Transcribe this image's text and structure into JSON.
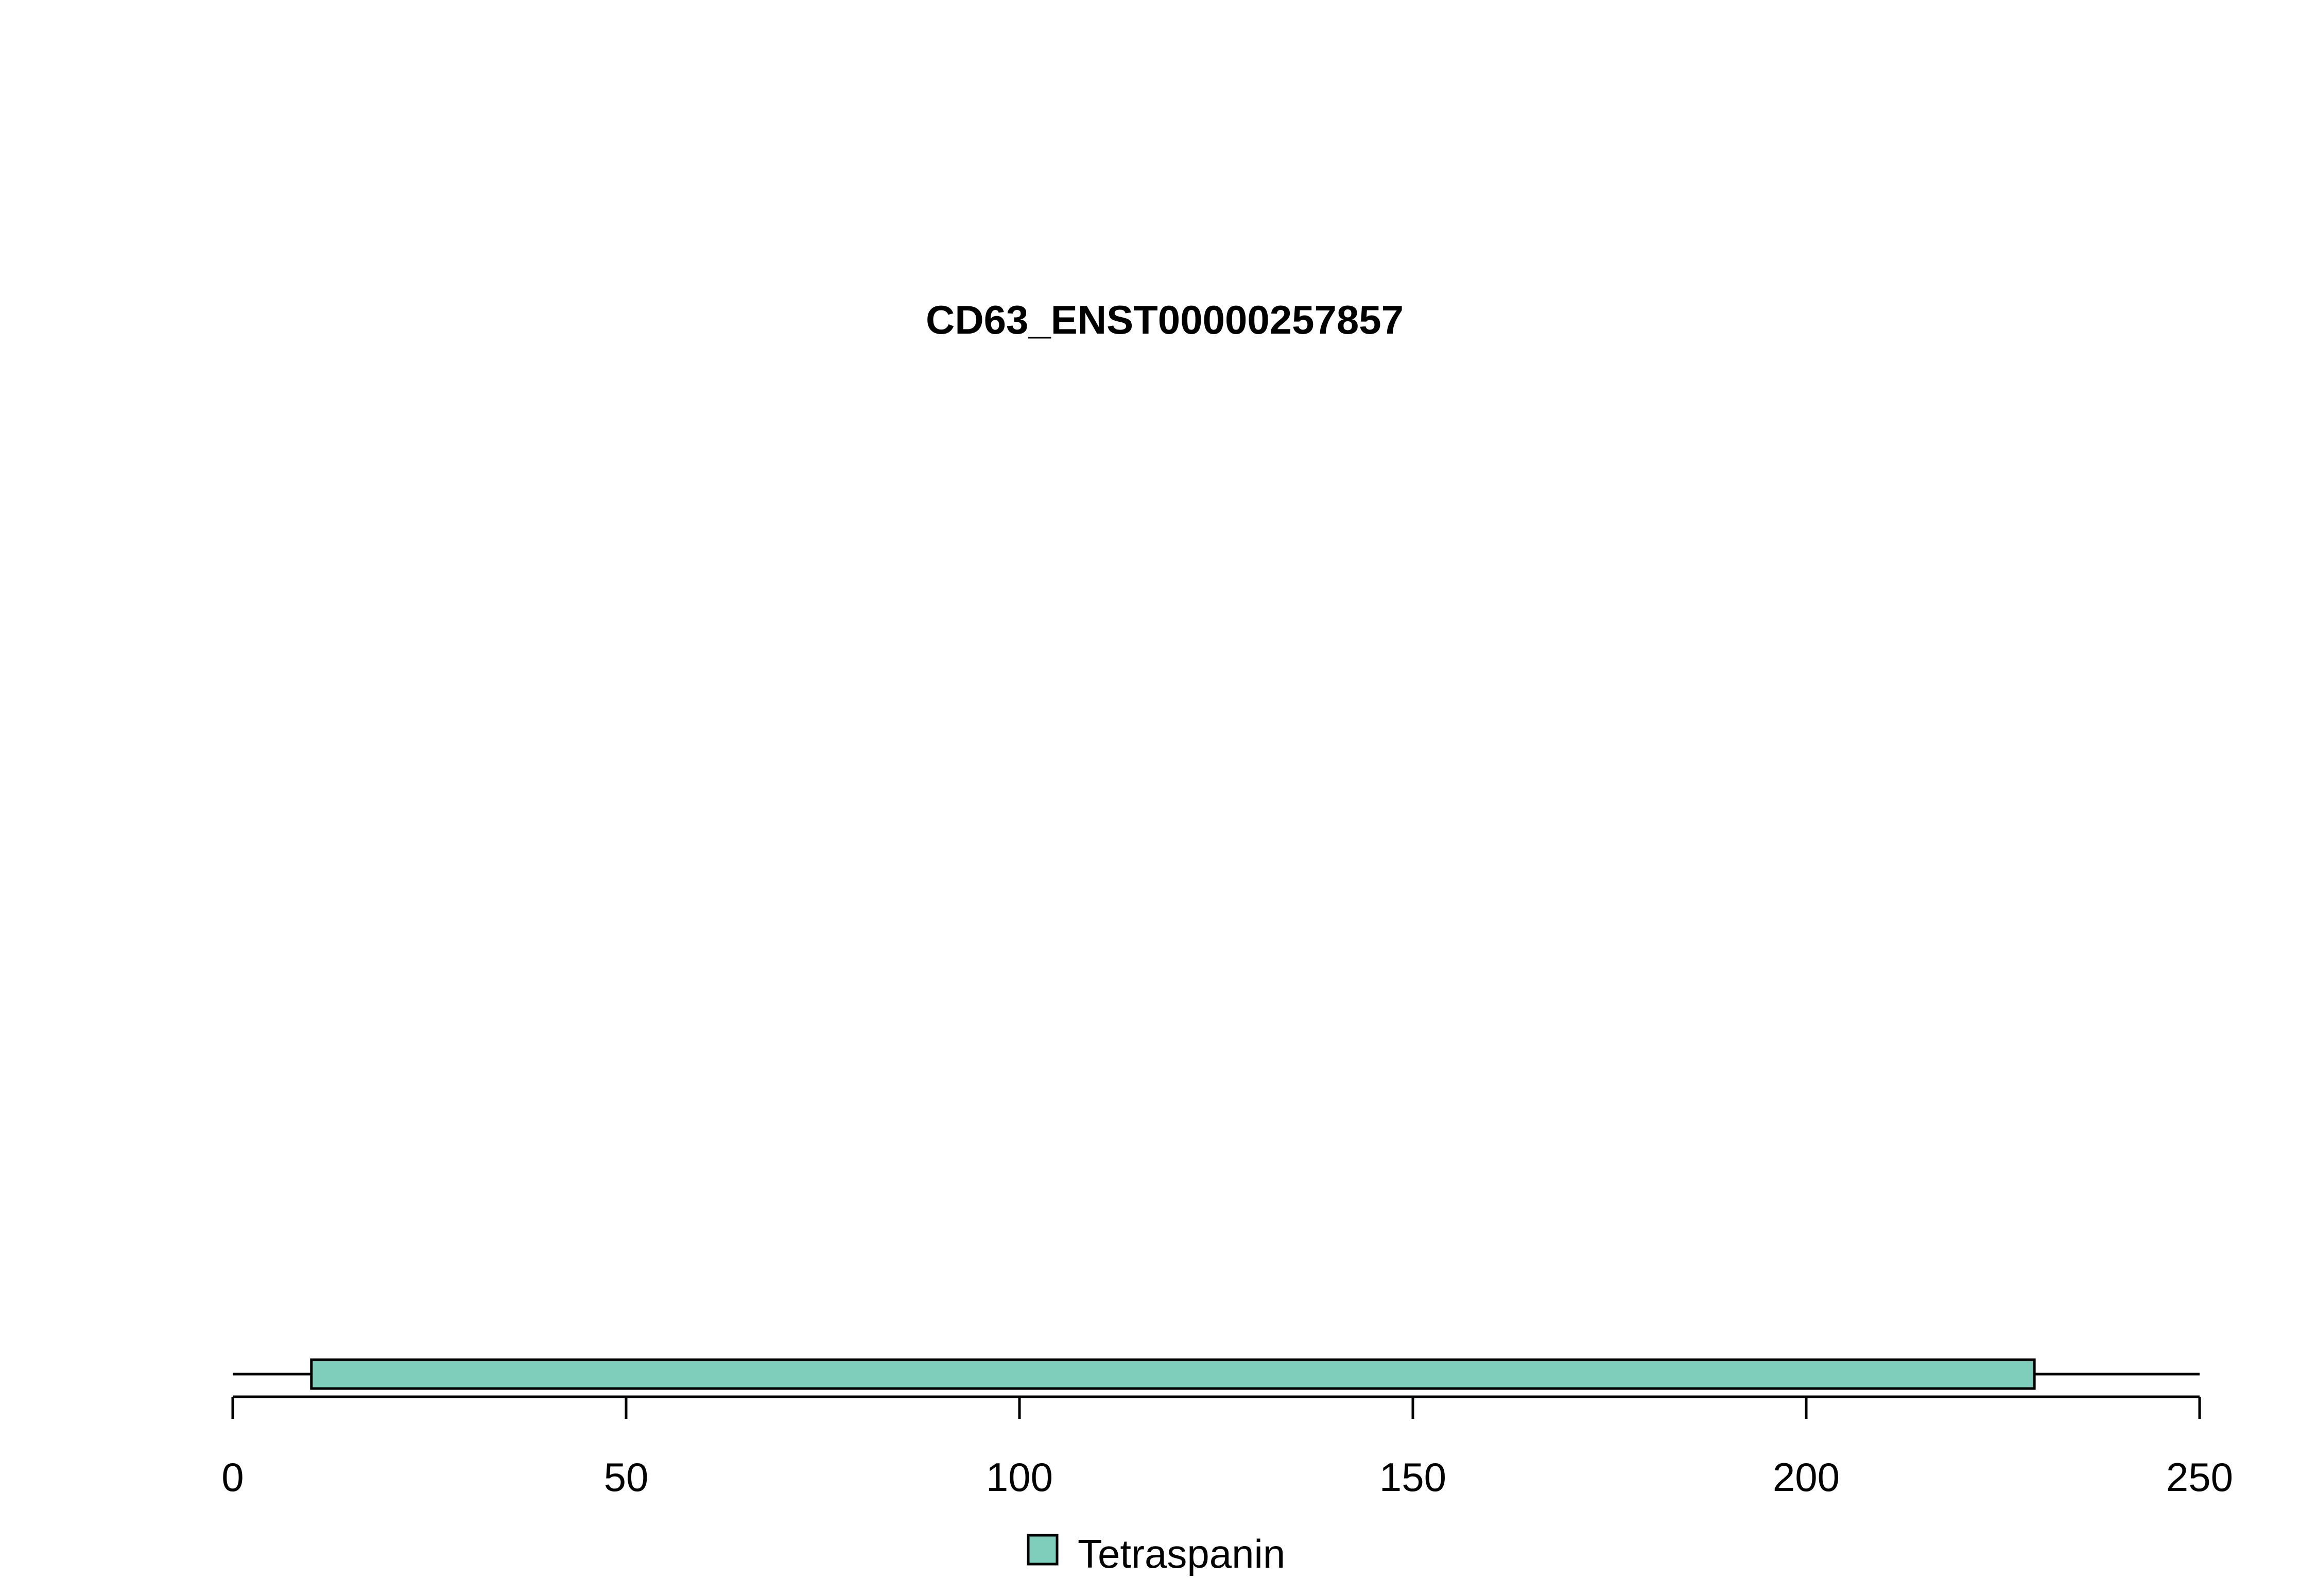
{
  "chart_data": {
    "type": "bar",
    "title": "CD63_ENST00000257857",
    "xlabel": "",
    "ylabel": "",
    "xlim": [
      0,
      250
    ],
    "x_ticks": [
      0,
      50,
      100,
      150,
      200,
      250
    ],
    "x_tick_labels": [
      "0",
      "50",
      "100",
      "150",
      "200",
      "250"
    ],
    "protein_length": 250,
    "domains": [
      {
        "name": "Tetraspanin",
        "start": 10,
        "end": 229,
        "color": "#7fcdbb"
      }
    ],
    "legend": {
      "placement": "bottom-center",
      "entries": [
        {
          "label": "Tetraspanin",
          "color": "#7fcdbb"
        }
      ]
    },
    "grid": false
  }
}
